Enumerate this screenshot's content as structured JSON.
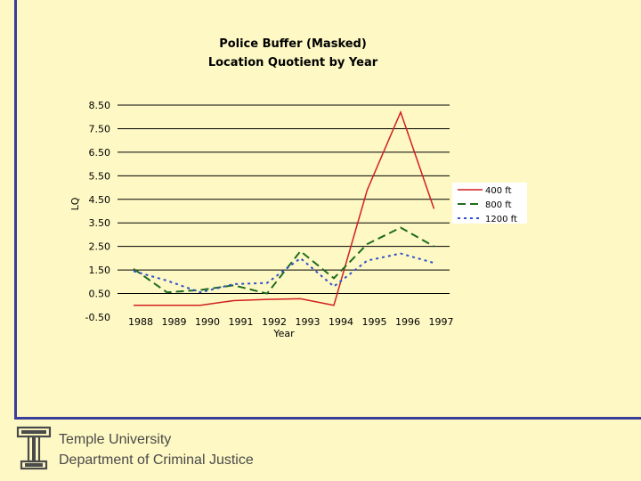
{
  "chart_data": {
    "type": "line",
    "title": "Police Buffer (Masked)",
    "subtitle": "Location Quotient by Year",
    "xlabel": "Year",
    "ylabel": "LQ",
    "categories": [
      "1988",
      "1989",
      "1990",
      "1991",
      "1992",
      "1993",
      "1994",
      "1995",
      "1996",
      "1997"
    ],
    "yticks": [
      "8.50",
      "7.50",
      "6.50",
      "5.50",
      "4.50",
      "3.50",
      "2.50",
      "1.50",
      "0.50",
      "-0.50"
    ],
    "ylim": [
      -0.5,
      8.5
    ],
    "grid": "horizontal",
    "legend_position": "right",
    "series": [
      {
        "name": "400 ft",
        "color": "#d21f1f",
        "dash": "solid",
        "values": [
          0,
          0,
          0,
          0.2,
          0.25,
          0.28,
          0,
          4.9,
          8.2,
          4.1
        ]
      },
      {
        "name": "800 ft",
        "color": "#1f6b1f",
        "dash": "long-dash",
        "values": [
          1.55,
          0.55,
          0.65,
          0.85,
          0.5,
          2.3,
          1.15,
          2.6,
          3.3,
          2.5
        ]
      },
      {
        "name": "1200 ft",
        "color": "#3050c8",
        "dash": "short-dash",
        "values": [
          1.45,
          1.05,
          0.55,
          0.9,
          0.95,
          2.0,
          0.8,
          1.9,
          2.2,
          1.8
        ]
      }
    ]
  },
  "footer": {
    "line1": "Temple University",
    "line2": "Department of Criminal Justice"
  },
  "logo_icon": "temple-t-logo-icon"
}
